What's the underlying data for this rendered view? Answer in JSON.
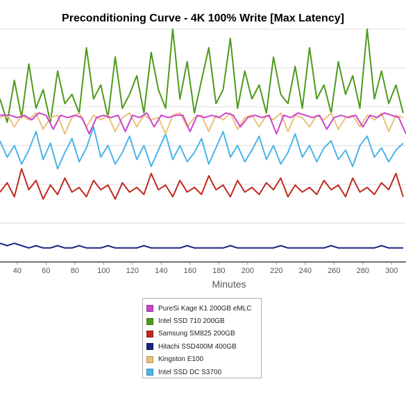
{
  "chart_data": {
    "type": "line",
    "title": "Preconditioning Curve - 4K 100% Write [Max Latency]",
    "xlabel": "Minutes",
    "ylabel": "",
    "xlim": [
      28,
      310
    ],
    "ylim": [
      0,
      100
    ],
    "x_ticks": [
      40,
      60,
      80,
      100,
      120,
      140,
      160,
      180,
      200,
      220,
      240,
      260,
      280,
      300
    ],
    "grid": true,
    "legend_position": "bottom-center",
    "series": [
      {
        "name": "PureSi Kage K1 200GB eMLC",
        "color": "#cc44cc",
        "x": [
          28,
          35,
          40,
          45,
          50,
          55,
          60,
          65,
          70,
          75,
          80,
          85,
          90,
          95,
          100,
          105,
          110,
          115,
          120,
          125,
          130,
          135,
          140,
          145,
          150,
          155,
          160,
          165,
          170,
          175,
          180,
          185,
          190,
          195,
          200,
          205,
          210,
          215,
          220,
          225,
          230,
          235,
          240,
          245,
          250,
          255,
          260,
          265,
          270,
          275,
          280,
          285,
          290,
          295,
          300,
          305,
          310
        ],
        "values": [
          63,
          63,
          62,
          63,
          61,
          64,
          63,
          57,
          63,
          62,
          63,
          62,
          55,
          62,
          63,
          62,
          63,
          56,
          63,
          62,
          64,
          58,
          63,
          62,
          63,
          63,
          56,
          63,
          62,
          63,
          62,
          64,
          63,
          58,
          62,
          63,
          62,
          63,
          55,
          63,
          62,
          64,
          63,
          62,
          63,
          57,
          62,
          63,
          62,
          63,
          58,
          63,
          62,
          64,
          63,
          62,
          55
        ]
      },
      {
        "name": "Intel SSD 710 200GB",
        "color": "#4c9a1a",
        "x": [
          28,
          33,
          38,
          43,
          48,
          53,
          58,
          63,
          68,
          73,
          78,
          83,
          88,
          93,
          98,
          103,
          108,
          113,
          118,
          123,
          128,
          133,
          138,
          143,
          148,
          153,
          158,
          163,
          168,
          173,
          178,
          183,
          188,
          193,
          198,
          203,
          208,
          213,
          218,
          223,
          228,
          233,
          238,
          243,
          248,
          253,
          258,
          263,
          268,
          273,
          278,
          283,
          288,
          293,
          298,
          303,
          308
        ],
        "values": [
          70,
          60,
          78,
          62,
          85,
          66,
          74,
          60,
          82,
          68,
          72,
          64,
          92,
          70,
          76,
          62,
          88,
          66,
          72,
          80,
          64,
          90,
          74,
          66,
          100,
          70,
          86,
          64,
          78,
          92,
          68,
          74,
          96,
          66,
          82,
          70,
          76,
          64,
          88,
          72,
          68,
          84,
          66,
          92,
          70,
          76,
          64,
          86,
          72,
          80,
          66,
          100,
          70,
          82,
          68,
          76,
          64
        ]
      },
      {
        "name": "Samsung SM825 200GB",
        "color": "#c0281e",
        "x": [
          28,
          33,
          38,
          43,
          48,
          53,
          58,
          63,
          68,
          73,
          78,
          83,
          88,
          93,
          98,
          103,
          108,
          113,
          118,
          123,
          128,
          133,
          138,
          143,
          148,
          153,
          158,
          163,
          168,
          173,
          178,
          183,
          188,
          193,
          198,
          203,
          208,
          213,
          218,
          223,
          228,
          233,
          238,
          243,
          248,
          253,
          258,
          263,
          268,
          273,
          278,
          283,
          288,
          293,
          298,
          303,
          308
        ],
        "values": [
          30,
          34,
          28,
          40,
          31,
          35,
          27,
          33,
          29,
          36,
          30,
          32,
          28,
          35,
          31,
          33,
          27,
          34,
          30,
          32,
          29,
          38,
          31,
          33,
          28,
          35,
          30,
          32,
          29,
          37,
          31,
          33,
          28,
          35,
          30,
          32,
          29,
          34,
          31,
          36,
          28,
          33,
          30,
          32,
          29,
          35,
          31,
          33,
          28,
          36,
          30,
          32,
          29,
          34,
          31,
          38,
          28
        ]
      },
      {
        "name": "Hitachi SSD400M 400GB",
        "color": "#1a237e",
        "x": [
          28,
          33,
          38,
          43,
          48,
          53,
          58,
          63,
          68,
          73,
          78,
          83,
          88,
          93,
          98,
          103,
          108,
          113,
          118,
          123,
          128,
          133,
          138,
          143,
          148,
          153,
          158,
          163,
          168,
          173,
          178,
          183,
          188,
          193,
          198,
          203,
          208,
          213,
          218,
          223,
          228,
          233,
          238,
          243,
          248,
          253,
          258,
          263,
          268,
          273,
          278,
          283,
          288,
          293,
          298,
          303,
          308
        ],
        "values": [
          8,
          7,
          8,
          7,
          6,
          7,
          6,
          6,
          7,
          6,
          6,
          7,
          6,
          6,
          6,
          7,
          6,
          6,
          6,
          6,
          7,
          6,
          6,
          6,
          6,
          6,
          7,
          6,
          6,
          6,
          6,
          6,
          7,
          6,
          6,
          6,
          6,
          6,
          6,
          7,
          6,
          6,
          6,
          6,
          6,
          6,
          7,
          6,
          6,
          6,
          6,
          6,
          6,
          7,
          6,
          6,
          6
        ]
      },
      {
        "name": "Kingston E100",
        "color": "#edc07a",
        "x": [
          28,
          33,
          38,
          43,
          48,
          53,
          58,
          63,
          68,
          73,
          78,
          83,
          88,
          93,
          98,
          103,
          108,
          113,
          118,
          123,
          128,
          133,
          138,
          143,
          148,
          153,
          158,
          163,
          168,
          173,
          178,
          183,
          188,
          193,
          198,
          203,
          208,
          213,
          218,
          223,
          228,
          233,
          238,
          243,
          248,
          253,
          258,
          263,
          268,
          273,
          278,
          283,
          288,
          293,
          298,
          303,
          308
        ],
        "values": [
          62,
          63,
          58,
          63,
          61,
          64,
          57,
          62,
          63,
          55,
          62,
          64,
          58,
          63,
          61,
          63,
          56,
          62,
          64,
          58,
          63,
          61,
          62,
          55,
          63,
          64,
          58,
          62,
          63,
          56,
          63,
          61,
          64,
          57,
          62,
          63,
          58,
          63,
          61,
          64,
          56,
          63,
          62,
          58,
          63,
          61,
          64,
          57,
          62,
          63,
          58,
          63,
          61,
          64,
          56,
          63,
          62
        ]
      },
      {
        "name": "Intel SSD DC S3700",
        "color": "#4ab4e8",
        "x": [
          28,
          33,
          38,
          43,
          48,
          53,
          58,
          63,
          68,
          73,
          78,
          83,
          88,
          93,
          98,
          103,
          108,
          113,
          118,
          123,
          128,
          133,
          138,
          143,
          148,
          153,
          158,
          163,
          168,
          173,
          178,
          183,
          188,
          193,
          198,
          203,
          208,
          213,
          218,
          223,
          228,
          233,
          238,
          243,
          248,
          253,
          258,
          263,
          268,
          273,
          278,
          283,
          288,
          293,
          298,
          303,
          308
        ],
        "values": [
          52,
          45,
          50,
          42,
          48,
          56,
          44,
          51,
          40,
          47,
          53,
          43,
          49,
          58,
          45,
          50,
          42,
          47,
          54,
          44,
          50,
          41,
          48,
          55,
          44,
          50,
          43,
          47,
          53,
          42,
          49,
          56,
          45,
          50,
          43,
          48,
          54,
          44,
          50,
          42,
          47,
          55,
          45,
          50,
          43,
          49,
          52,
          44,
          48,
          41,
          50,
          54,
          45,
          49,
          43,
          48,
          51
        ]
      }
    ]
  }
}
